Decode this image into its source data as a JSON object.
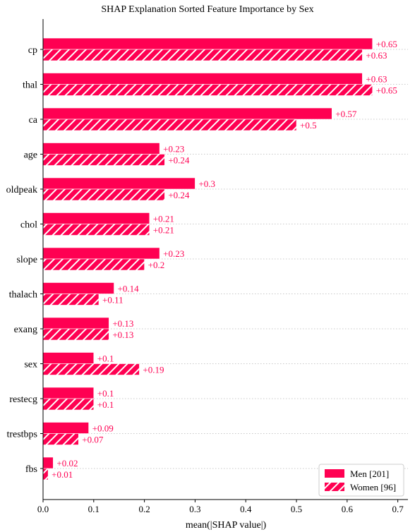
{
  "chart_data": {
    "type": "bar",
    "title": "SHAP Explanation Sorted Feature Importance by Sex",
    "xlabel": "mean(|SHAP value|)",
    "ylabel": "",
    "xlim": [
      0.0,
      0.72
    ],
    "xticks": [
      "0.0",
      "0.1",
      "0.2",
      "0.3",
      "0.4",
      "0.5",
      "0.6",
      "0.7"
    ],
    "xtick_values": [
      0.0,
      0.1,
      0.2,
      0.3,
      0.4,
      0.5,
      0.6,
      0.7
    ],
    "orientation": "horizontal",
    "grid": "horizontal dotted lines",
    "legend_position": "bottom-right",
    "categories": [
      "cp",
      "thal",
      "ca",
      "age",
      "oldpeak",
      "chol",
      "slope",
      "thalach",
      "exang",
      "sex",
      "restecg",
      "trestbps",
      "fbs"
    ],
    "series": [
      {
        "name": "Men [201]",
        "color": "#ff0052",
        "pattern": "solid",
        "values": [
          0.65,
          0.63,
          0.57,
          0.23,
          0.3,
          0.21,
          0.23,
          0.14,
          0.13,
          0.1,
          0.1,
          0.09,
          0.02
        ],
        "labels": [
          "+0.65",
          "+0.63",
          "+0.57",
          "+0.23",
          "+0.3",
          "+0.21",
          "+0.23",
          "+0.14",
          "+0.13",
          "+0.1",
          "+0.1",
          "+0.09",
          "+0.02"
        ]
      },
      {
        "name": "Women [96]",
        "color": "#ff0052",
        "pattern": "hatched",
        "values": [
          0.63,
          0.65,
          0.5,
          0.24,
          0.24,
          0.21,
          0.2,
          0.11,
          0.13,
          0.19,
          0.1,
          0.07,
          0.01
        ],
        "labels": [
          "+0.63",
          "+0.65",
          "+0.5",
          "+0.24",
          "+0.24",
          "+0.21",
          "+0.2",
          "+0.11",
          "+0.13",
          "+0.19",
          "+0.1",
          "+0.07",
          "+0.01"
        ]
      }
    ]
  }
}
